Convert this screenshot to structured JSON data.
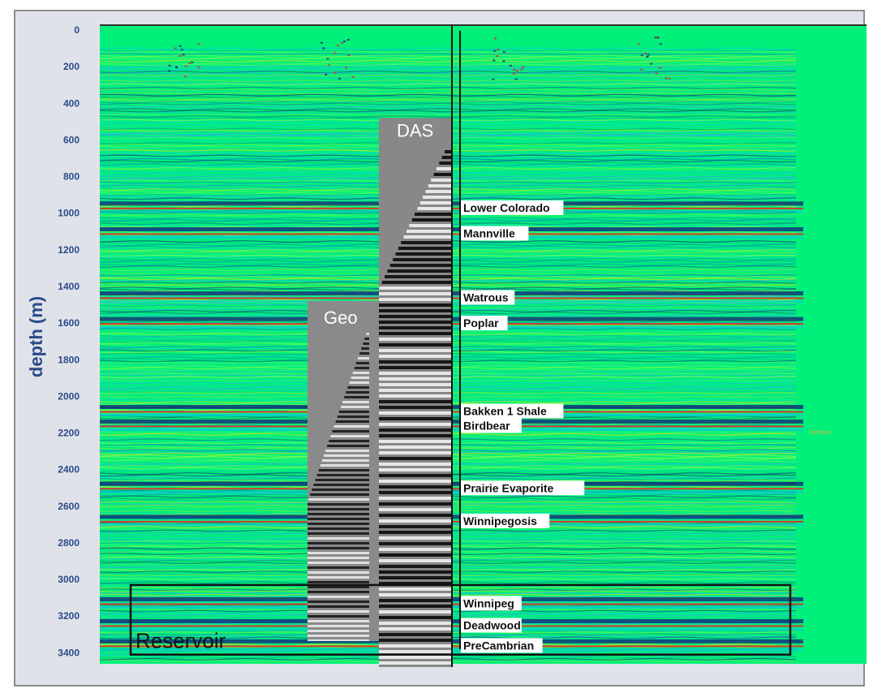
{
  "chart_data": {
    "type": "seismic-section",
    "ylabel": "depth (m)",
    "yticks": [
      0,
      200,
      400,
      600,
      800,
      1000,
      1200,
      1400,
      1600,
      1800,
      2000,
      2200,
      2400,
      2600,
      2800,
      3000,
      3200,
      3400
    ],
    "ylim": [
      0,
      3460
    ],
    "panels": [
      {
        "label": "DAS",
        "top_depth": 480
      },
      {
        "label": "Geo",
        "top_depth": 1480
      }
    ],
    "formations": [
      {
        "name": "Lower Colorado",
        "depth": 970
      },
      {
        "name": "Mannville",
        "depth": 1110
      },
      {
        "name": "Watrous",
        "depth": 1460
      },
      {
        "name": "Poplar",
        "depth": 1600
      },
      {
        "name": "Bakken 1 Shale",
        "depth": 2080
      },
      {
        "name": "Birdbear",
        "depth": 2160
      },
      {
        "name": "Prairie Evaporite",
        "depth": 2500
      },
      {
        "name": "Winnipegosis",
        "depth": 2680
      },
      {
        "name": "Winnipeg",
        "depth": 3130
      },
      {
        "name": "Deadwood",
        "depth": 3250
      },
      {
        "name": "PreCambrian",
        "depth": 3360
      }
    ],
    "side_annotation": "Birdbear",
    "reservoir": {
      "label": "Reservoir",
      "top_depth": 3030,
      "bottom_depth": 3410
    },
    "colors": {
      "background": "#dfe3e9",
      "section": "#00f07a",
      "axis_text": "#2b4a8a",
      "horizon_red": "#e8232b",
      "horizon_blue": "#10207a",
      "horizon_cyan": "#00c9e4"
    }
  }
}
